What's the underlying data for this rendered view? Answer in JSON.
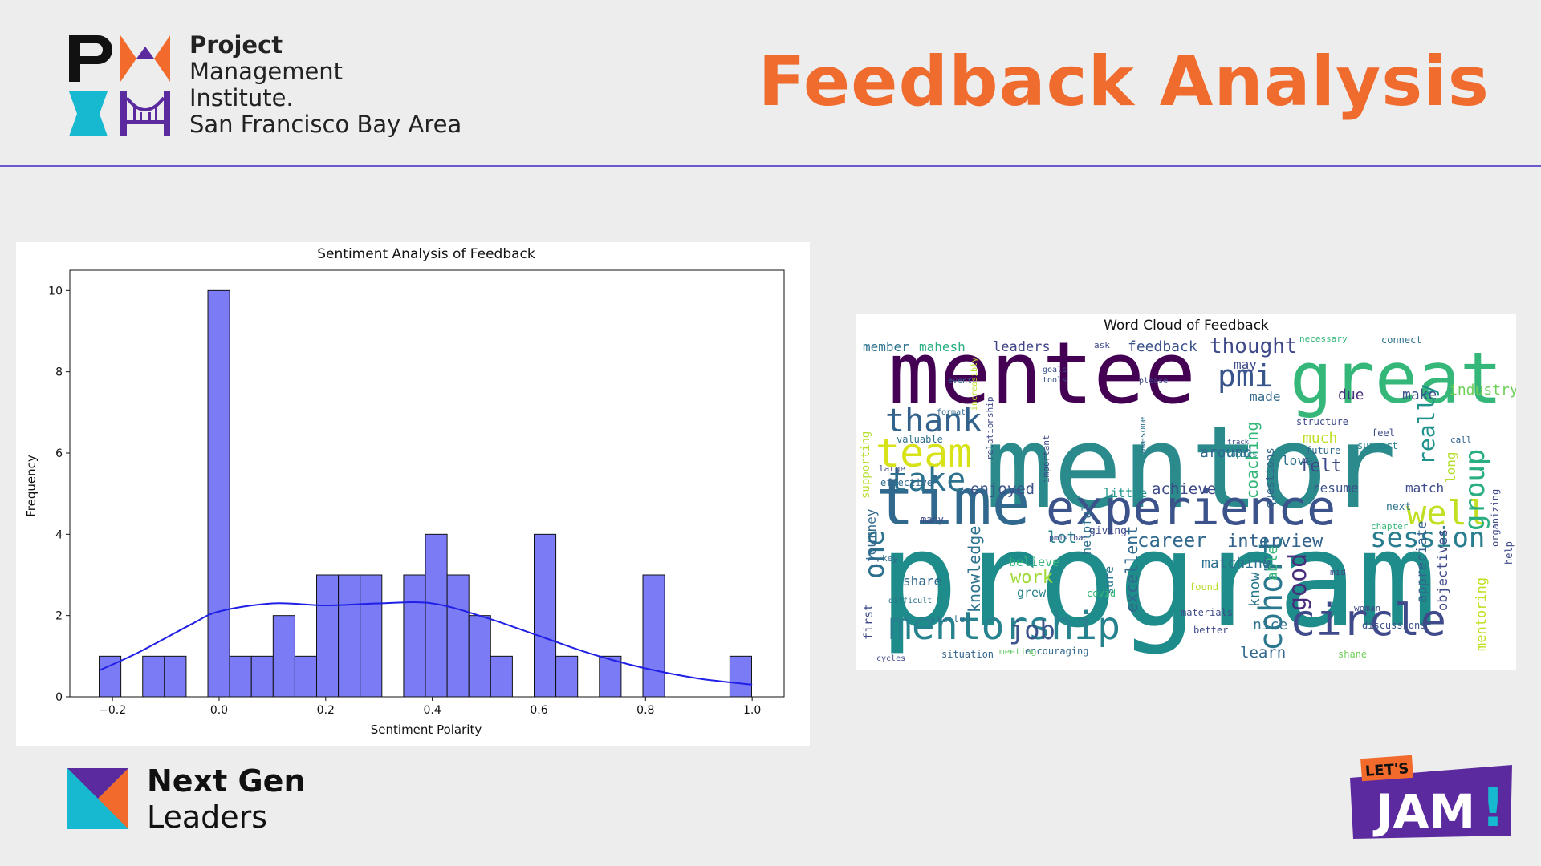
{
  "header": {
    "org_line1": "Project",
    "org_line2": "Management",
    "org_line3": "Institute.",
    "org_line4": "San Francisco Bay Area",
    "title": "Feedback Analysis"
  },
  "footer": {
    "brand_line1": "Next Gen",
    "brand_line2": "Leaders",
    "badge_top": "LET'S",
    "badge_main": "JAM",
    "badge_mark": "!"
  },
  "colors": {
    "accent_orange": "#f06b2e",
    "divider_purple": "#6a5acd",
    "bar_fill": "#7b7bf5",
    "kde_line": "#1f1fe6",
    "badge_purple": "#5b2a9e",
    "badge_teal": "#17b9d1"
  },
  "chart_data": [
    {
      "type": "bar",
      "title": "Sentiment Analysis of Feedback",
      "xlabel": "Sentiment Polarity",
      "ylabel": "Frequency",
      "xlim": [
        -0.28,
        1.06
      ],
      "ylim": [
        0,
        10.5
      ],
      "xticks": [
        -0.2,
        0.0,
        0.2,
        0.4,
        0.6,
        0.8,
        1.0
      ],
      "xtick_labels": [
        "−0.2",
        "0.0",
        "0.2",
        "0.4",
        "0.6",
        "0.8",
        "1.0"
      ],
      "yticks": [
        0,
        2,
        4,
        6,
        8,
        10
      ],
      "bin_start": -0.225,
      "bin_width": 0.0408,
      "counts": [
        1,
        0,
        1,
        1,
        0,
        10,
        1,
        1,
        2,
        1,
        3,
        3,
        3,
        0,
        3,
        4,
        3,
        2,
        1,
        0,
        4,
        1,
        0,
        1,
        0,
        3,
        0,
        0,
        0,
        1
      ],
      "kde": {
        "x": [
          -0.225,
          -0.15,
          -0.05,
          0.0,
          0.1,
          0.2,
          0.3,
          0.4,
          0.5,
          0.6,
          0.7,
          0.8,
          0.9,
          1.0
        ],
        "y": [
          0.65,
          1.1,
          1.8,
          2.1,
          2.3,
          2.25,
          2.3,
          2.3,
          1.95,
          1.5,
          1.05,
          0.7,
          0.45,
          0.3
        ]
      },
      "grid": false,
      "legend": "none"
    },
    {
      "type": "wordcloud",
      "title": "Word Cloud of Feedback",
      "words": [
        {
          "text": "program",
          "color": "#1e8c8a"
        },
        {
          "text": "mentor",
          "color": "#2a8a8c"
        },
        {
          "text": "mentee",
          "color": "#440154"
        },
        {
          "text": "great",
          "color": "#35b779"
        },
        {
          "text": "time",
          "color": "#31688e"
        },
        {
          "text": "experience",
          "color": "#3b528b"
        },
        {
          "text": "mentorship",
          "color": "#26828e"
        },
        {
          "text": "circle",
          "color": "#3e4a89"
        },
        {
          "text": "team",
          "color": "#d8e219"
        },
        {
          "text": "take",
          "color": "#2c728e"
        },
        {
          "text": "thank",
          "color": "#33638d"
        },
        {
          "text": "pmi",
          "color": "#39568c"
        },
        {
          "text": "well",
          "color": "#c2df23"
        },
        {
          "text": "session",
          "color": "#287d8e"
        },
        {
          "text": "cohort",
          "color": "#2a788e"
        },
        {
          "text": "job",
          "color": "#3b528b"
        },
        {
          "text": "one",
          "color": "#2d708e"
        },
        {
          "text": "group",
          "color": "#29af7f"
        },
        {
          "text": "thought",
          "color": "#3e4989"
        },
        {
          "text": "really",
          "color": "#20928c"
        },
        {
          "text": "good",
          "color": "#472d7b"
        },
        {
          "text": "career",
          "color": "#31688e"
        },
        {
          "text": "interview",
          "color": "#33638d"
        },
        {
          "text": "industry",
          "color": "#6ece58"
        },
        {
          "text": "feedback",
          "color": "#3b528b"
        },
        {
          "text": "leaders",
          "color": "#404387"
        },
        {
          "text": "member",
          "color": "#2c728e"
        },
        {
          "text": "mahesh",
          "color": "#29af7f"
        },
        {
          "text": "journey",
          "color": "#31688e"
        },
        {
          "text": "supporting",
          "color": "#b5de2b"
        },
        {
          "text": "enjoyed",
          "color": "#3b528b"
        },
        {
          "text": "achieve",
          "color": "#3e4989"
        },
        {
          "text": "lot",
          "color": "#26828e"
        },
        {
          "text": "work",
          "color": "#a0da39"
        },
        {
          "text": "knowledge",
          "color": "#2c728e"
        },
        {
          "text": "excellent",
          "color": "#31688e"
        },
        {
          "text": "coaching",
          "color": "#35b779"
        },
        {
          "text": "appreciate",
          "color": "#33638d"
        },
        {
          "text": "objectives",
          "color": "#3e4989"
        },
        {
          "text": "mentoring",
          "color": "#c2df23"
        },
        {
          "text": "matching",
          "color": "#2d708e"
        },
        {
          "text": "learn",
          "color": "#31688e"
        },
        {
          "text": "nice",
          "color": "#2c728e"
        },
        {
          "text": "know",
          "color": "#2a788e"
        },
        {
          "text": "able",
          "color": "#35b779"
        },
        {
          "text": "felt",
          "color": "#3e4989"
        },
        {
          "text": "much",
          "color": "#bddf26"
        },
        {
          "text": "make",
          "color": "#3b528b"
        },
        {
          "text": "due",
          "color": "#472d7b"
        },
        {
          "text": "made",
          "color": "#31688e"
        },
        {
          "text": "may",
          "color": "#3e4989"
        },
        {
          "text": "love",
          "color": "#2c728e"
        },
        {
          "text": "around",
          "color": "#31688e"
        },
        {
          "text": "questions",
          "color": "#33638d"
        },
        {
          "text": "little",
          "color": "#1f988b"
        },
        {
          "text": "resume",
          "color": "#3b528b"
        },
        {
          "text": "match",
          "color": "#3e4989"
        },
        {
          "text": "share",
          "color": "#31688e"
        },
        {
          "text": "believe",
          "color": "#35b779"
        },
        {
          "text": "grew",
          "color": "#26828e"
        },
        {
          "text": "sure",
          "color": "#2a788e"
        },
        {
          "text": "helpful",
          "color": "#2c728e"
        },
        {
          "text": "first",
          "color": "#3e4989"
        },
        {
          "text": "encouraging",
          "color": "#31688e"
        },
        {
          "text": "situation",
          "color": "#33638d"
        },
        {
          "text": "meeting",
          "color": "#5ec962"
        },
        {
          "text": "started",
          "color": "#2d708e"
        },
        {
          "text": "shane",
          "color": "#6ece58"
        },
        {
          "text": "better",
          "color": "#3e4989"
        },
        {
          "text": "discussions",
          "color": "#3b528b"
        },
        {
          "text": "future",
          "color": "#31688e"
        },
        {
          "text": "support",
          "color": "#26828e"
        },
        {
          "text": "structure",
          "color": "#3e4989"
        },
        {
          "text": "long",
          "color": "#b5de2b"
        },
        {
          "text": "next",
          "color": "#2c728e"
        },
        {
          "text": "giving",
          "color": "#3e4989"
        },
        {
          "text": "effective",
          "color": "#31688e"
        },
        {
          "text": "valuable",
          "color": "#2d708e"
        },
        {
          "text": "large",
          "color": "#3e4989"
        },
        {
          "text": "covid",
          "color": "#35b779"
        },
        {
          "text": "ask",
          "color": "#3e4989"
        },
        {
          "text": "goals",
          "color": "#3b528b"
        },
        {
          "text": "tools",
          "color": "#3b528b"
        },
        {
          "text": "please",
          "color": "#3e4989"
        },
        {
          "text": "necessary",
          "color": "#35b779"
        },
        {
          "text": "connect",
          "color": "#2c728e"
        },
        {
          "text": "event",
          "color": "#33638d"
        },
        {
          "text": "format",
          "color": "#31688e"
        },
        {
          "text": "important",
          "color": "#3e4989"
        },
        {
          "text": "relationship",
          "color": "#3e4989"
        },
        {
          "text": "increasibly",
          "color": "#c2df23"
        },
        {
          "text": "awesome",
          "color": "#2c728e"
        },
        {
          "text": "topics",
          "color": "#26828e"
        },
        {
          "text": "track",
          "color": "#3e4989"
        },
        {
          "text": "feel",
          "color": "#3e4989"
        },
        {
          "text": "call",
          "color": "#33638d"
        },
        {
          "text": "many",
          "color": "#3e4989"
        },
        {
          "text": "key",
          "color": "#31688e"
        },
        {
          "text": "difficult",
          "color": "#2c728e"
        },
        {
          "text": "cycles",
          "color": "#3e4989"
        },
        {
          "text": "materials",
          "color": "#3e4989"
        },
        {
          "text": "found",
          "color": "#b5de2b"
        },
        {
          "text": "woman",
          "color": "#3e4989"
        },
        {
          "text": "mid",
          "color": "#3e4989"
        },
        {
          "text": "chapter",
          "color": "#35b779"
        },
        {
          "text": "help",
          "color": "#3e4989"
        },
        {
          "text": "organizing",
          "color": "#3e4989"
        },
        {
          "text": "pmisfbac",
          "color": "#3e4989"
        },
        {
          "text": "people",
          "color": "#3e4989"
        }
      ]
    }
  ]
}
